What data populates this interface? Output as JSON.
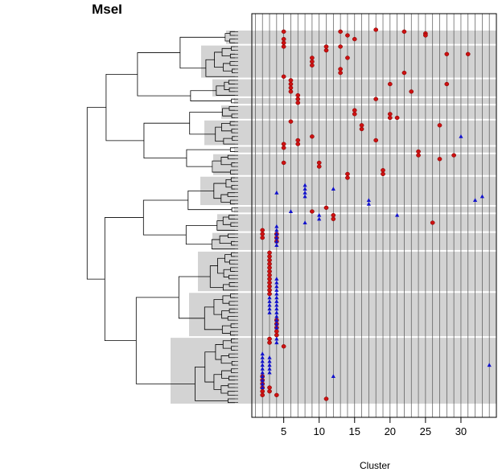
{
  "chart_data": {
    "type": "scatter",
    "title": "MseI",
    "xlabel": "Cluster",
    "ylabel": "",
    "xlim": [
      0.5,
      35
    ],
    "x_ticks": [
      5,
      10,
      15,
      20,
      25,
      30
    ],
    "grid": "vertical line at every integer cluster; white horizontal gaps separate shaded row groups",
    "rows_total": 100,
    "row_groups": [
      {
        "start": 1,
        "end": 4,
        "shaded": true
      },
      {
        "start": 5,
        "end": 13,
        "shaded": true
      },
      {
        "start": 14,
        "end": 18,
        "shaded": true
      },
      {
        "start": 19,
        "end": 20,
        "shaded": true
      },
      {
        "start": 21,
        "end": 24,
        "shaded": true
      },
      {
        "start": 25,
        "end": 31,
        "shaded": true
      },
      {
        "start": 32,
        "end": 33,
        "shaded": true
      },
      {
        "start": 34,
        "end": 39,
        "shaded": true
      },
      {
        "start": 40,
        "end": 47,
        "shaded": true
      },
      {
        "start": 48,
        "end": 49,
        "shaded": true
      },
      {
        "start": 50,
        "end": 54,
        "shaded": true
      },
      {
        "start": 55,
        "end": 59,
        "shaded": true
      },
      {
        "start": 60,
        "end": 70,
        "shaded": true
      },
      {
        "start": 71,
        "end": 82,
        "shaded": true
      },
      {
        "start": 83,
        "end": 100,
        "shaded": true
      }
    ],
    "series": [
      {
        "marker": "circle",
        "color": "#cc1111",
        "points": [
          [
            5,
            1
          ],
          [
            5,
            3
          ],
          [
            5,
            4
          ],
          [
            13,
            1
          ],
          [
            18,
            0.5
          ],
          [
            22,
            1
          ],
          [
            25,
            1.5
          ],
          [
            25,
            2
          ],
          [
            14,
            2
          ],
          [
            15,
            3
          ],
          [
            5,
            5
          ],
          [
            11,
            5
          ],
          [
            11,
            6
          ],
          [
            13,
            5
          ],
          [
            28,
            7
          ],
          [
            31,
            7
          ],
          [
            14,
            8
          ],
          [
            9,
            8
          ],
          [
            9,
            9
          ],
          [
            9,
            10
          ],
          [
            13,
            11
          ],
          [
            13,
            12
          ],
          [
            22,
            12
          ],
          [
            5,
            13
          ],
          [
            6,
            14
          ],
          [
            6,
            15
          ],
          [
            6,
            16
          ],
          [
            6,
            17
          ],
          [
            20,
            15
          ],
          [
            23,
            17
          ],
          [
            28,
            15
          ],
          [
            7,
            18
          ],
          [
            7,
            19
          ],
          [
            7,
            20
          ],
          [
            18,
            19
          ],
          [
            15,
            22
          ],
          [
            15,
            23
          ],
          [
            20,
            23
          ],
          [
            20,
            24
          ],
          [
            21,
            24
          ],
          [
            6,
            25
          ],
          [
            16,
            26
          ],
          [
            16,
            27
          ],
          [
            27,
            26
          ],
          [
            9,
            29
          ],
          [
            7,
            30
          ],
          [
            7,
            31
          ],
          [
            18,
            30
          ],
          [
            5,
            31
          ],
          [
            5,
            32
          ],
          [
            24,
            33
          ],
          [
            24,
            34
          ],
          [
            27,
            35
          ],
          [
            29,
            34
          ],
          [
            5,
            36
          ],
          [
            10,
            36
          ],
          [
            10,
            37
          ],
          [
            19,
            38
          ],
          [
            19,
            39
          ],
          [
            14,
            39
          ],
          [
            14,
            40
          ],
          [
            11,
            48
          ],
          [
            9,
            49
          ],
          [
            12,
            50
          ],
          [
            12,
            51
          ],
          [
            26,
            52
          ],
          [
            2,
            54
          ],
          [
            2,
            55
          ],
          [
            2,
            56
          ],
          [
            4,
            55
          ],
          [
            4,
            56
          ],
          [
            4,
            57
          ],
          [
            3,
            60
          ],
          [
            3,
            61
          ],
          [
            3,
            62
          ],
          [
            3,
            63
          ],
          [
            3,
            64
          ],
          [
            3,
            65
          ],
          [
            3,
            66
          ],
          [
            3,
            67
          ],
          [
            3,
            68
          ],
          [
            3,
            69
          ],
          [
            3,
            70
          ],
          [
            3,
            71
          ],
          [
            4,
            78
          ],
          [
            4,
            79
          ],
          [
            4,
            80
          ],
          [
            4,
            81
          ],
          [
            4,
            82
          ],
          [
            3,
            83
          ],
          [
            3,
            84
          ],
          [
            5,
            85
          ],
          [
            2,
            93
          ],
          [
            2,
            94
          ],
          [
            2,
            95
          ],
          [
            2,
            96
          ],
          [
            2,
            97
          ],
          [
            2,
            98
          ],
          [
            3,
            96
          ],
          [
            3,
            97
          ],
          [
            4,
            98
          ],
          [
            11,
            99
          ]
        ]
      },
      {
        "marker": "triangle",
        "color": "#1111cc",
        "points": [
          [
            30,
            29
          ],
          [
            8,
            42
          ],
          [
            8,
            43
          ],
          [
            8,
            44
          ],
          [
            8,
            45
          ],
          [
            12,
            43
          ],
          [
            4,
            44
          ],
          [
            17,
            46
          ],
          [
            17,
            47
          ],
          [
            33,
            45
          ],
          [
            32,
            46
          ],
          [
            6,
            49
          ],
          [
            10,
            50
          ],
          [
            10,
            51
          ],
          [
            21,
            50
          ],
          [
            8,
            52
          ],
          [
            4,
            53
          ],
          [
            4,
            54
          ],
          [
            4,
            55
          ],
          [
            4,
            56
          ],
          [
            4,
            57
          ],
          [
            4,
            58
          ],
          [
            4,
            67
          ],
          [
            4,
            68
          ],
          [
            4,
            69
          ],
          [
            4,
            70
          ],
          [
            4,
            71
          ],
          [
            4,
            72
          ],
          [
            4,
            73
          ],
          [
            4,
            74
          ],
          [
            4,
            75
          ],
          [
            4,
            76
          ],
          [
            4,
            77
          ],
          [
            4,
            78
          ],
          [
            4,
            79
          ],
          [
            4,
            80
          ],
          [
            3,
            72
          ],
          [
            3,
            73
          ],
          [
            3,
            74
          ],
          [
            3,
            75
          ],
          [
            3,
            76
          ],
          [
            4,
            83
          ],
          [
            4,
            84
          ],
          [
            2,
            87
          ],
          [
            2,
            88
          ],
          [
            2,
            89
          ],
          [
            2,
            90
          ],
          [
            2,
            91
          ],
          [
            2,
            92
          ],
          [
            2,
            93
          ],
          [
            2,
            94
          ],
          [
            2,
            95
          ],
          [
            2,
            96
          ],
          [
            3,
            88
          ],
          [
            3,
            89
          ],
          [
            3,
            90
          ],
          [
            3,
            91
          ],
          [
            3,
            92
          ],
          [
            34,
            90
          ],
          [
            12,
            93
          ]
        ]
      }
    ]
  }
}
